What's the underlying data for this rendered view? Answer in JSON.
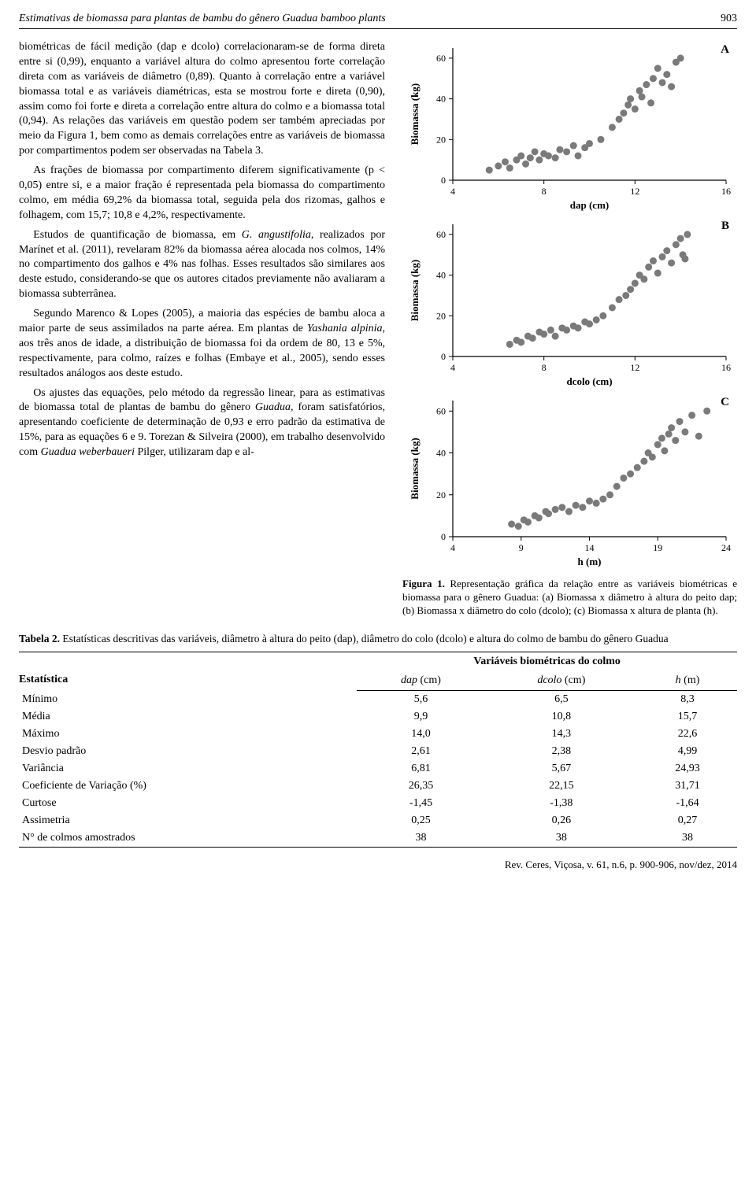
{
  "header": {
    "running_title": "Estimativas de biomassa para plantas de bambu do gênero Guadua bamboo plants",
    "page_number": "903"
  },
  "body": {
    "p1": "biométricas de fácil medição (dap e dcolo) correlacionaram-se de forma direta entre si (0,99), enquanto a variável altura do colmo apresentou forte correlação direta com as variáveis de diâmetro (0,89). Quanto à correlação entre a variável biomassa total e as variáveis diamétricas, esta se mostrou forte e direta (0,90), assim como foi forte e direta a correlação entre altura do colmo e a biomassa total (0,94). As relações das variáveis em questão podem ser também apreciadas por meio da Figura 1, bem como as demais correlações entre as variáveis de biomassa por compartimentos podem ser observadas na Tabela 3.",
    "p2": "As frações de biomassa por compartimento diferem significativamente (p < 0,05) entre si, e a maior fração é representada pela biomassa do compartimento colmo, em média 69,2% da biomassa total, seguida pela dos rizomas, galhos e folhagem, com 15,7; 10,8 e 4,2%, respectivamente.",
    "p3a": "Estudos de quantificação de biomassa, em ",
    "p3b": "G. angustifolia,",
    "p3c": " realizados por Marínet et al. (2011), revelaram 82% da biomassa aérea alocada nos colmos, 14% no compartimento dos galhos e 4% nas folhas. Esses resultados são similares aos deste estudo, considerando-se que os autores citados previamente não avaliaram a biomassa subterrânea.",
    "p4a": "Segundo Marenco & Lopes (2005), a maioria das espécies de bambu aloca a maior parte de seus assimilados na parte aérea. Em plantas de ",
    "p4b": "Yashania alpinia",
    "p4c": ", aos três anos de idade, a distribuição de biomassa foi da ordem de 80, 13 e 5%, respectivamente, para colmo, raízes e folhas (Embaye et al., 2005), sendo esses resultados análogos aos deste estudo.",
    "p5a": "Os ajustes das equações, pelo método da regressão linear, para as estimativas de biomassa total de plantas de bambu do gênero ",
    "p5b": "Guadua,",
    "p5c": " foram satisfatórios, apresentando coeficiente de determinação de 0,93 e erro padrão da estimativa de 15%, para as equações 6 e 9. Torezan & Silveira (2000), em trabalho desenvolvido com ",
    "p5d": "Guadua weberbaueri",
    "p5e": " Pilger, utilizaram dap e al-"
  },
  "charts": {
    "common": {
      "ylabel": "Biomassa (kg)",
      "marker_color": "#7a7a7a",
      "marker_radius": 4.5,
      "axis_color": "#000000",
      "label_fontsize": 13,
      "tick_fontsize": 12
    },
    "a": {
      "letter": "A",
      "xlabel": "dap (cm)",
      "xlim": [
        4,
        16
      ],
      "xticks": [
        4,
        8,
        12,
        16
      ],
      "ylim": [
        0,
        65
      ],
      "yticks": [
        0,
        20,
        40,
        60
      ],
      "points": [
        [
          5.6,
          5
        ],
        [
          6.0,
          7
        ],
        [
          6.3,
          9
        ],
        [
          6.5,
          6
        ],
        [
          6.8,
          10
        ],
        [
          7.0,
          12
        ],
        [
          7.2,
          8
        ],
        [
          7.4,
          11
        ],
        [
          7.6,
          14
        ],
        [
          7.8,
          10
        ],
        [
          8.0,
          13
        ],
        [
          8.2,
          12
        ],
        [
          8.5,
          11
        ],
        [
          8.7,
          15
        ],
        [
          9.0,
          14
        ],
        [
          9.3,
          17
        ],
        [
          9.5,
          12
        ],
        [
          9.8,
          16
        ],
        [
          10.0,
          18
        ],
        [
          10.5,
          20
        ],
        [
          11.0,
          26
        ],
        [
          11.3,
          30
        ],
        [
          11.5,
          33
        ],
        [
          11.7,
          37
        ],
        [
          11.8,
          40
        ],
        [
          12.0,
          35
        ],
        [
          12.2,
          44
        ],
        [
          12.3,
          41
        ],
        [
          12.5,
          47
        ],
        [
          12.7,
          38
        ],
        [
          12.8,
          50
        ],
        [
          13.0,
          55
        ],
        [
          13.2,
          48
        ],
        [
          13.4,
          52
        ],
        [
          13.6,
          46
        ],
        [
          13.8,
          58
        ],
        [
          14.0,
          60
        ]
      ]
    },
    "b": {
      "letter": "B",
      "xlabel": "dcolo (cm)",
      "xlim": [
        4,
        16
      ],
      "xticks": [
        4,
        8,
        12,
        16
      ],
      "ylim": [
        0,
        65
      ],
      "yticks": [
        0,
        20,
        40,
        60
      ],
      "points": [
        [
          6.5,
          6
        ],
        [
          6.8,
          8
        ],
        [
          7.0,
          7
        ],
        [
          7.3,
          10
        ],
        [
          7.5,
          9
        ],
        [
          7.8,
          12
        ],
        [
          8.0,
          11
        ],
        [
          8.3,
          13
        ],
        [
          8.5,
          10
        ],
        [
          8.8,
          14
        ],
        [
          9.0,
          13
        ],
        [
          9.3,
          15
        ],
        [
          9.5,
          14
        ],
        [
          9.8,
          17
        ],
        [
          10.0,
          16
        ],
        [
          10.3,
          18
        ],
        [
          10.6,
          20
        ],
        [
          11.0,
          24
        ],
        [
          11.3,
          28
        ],
        [
          11.6,
          30
        ],
        [
          11.8,
          33
        ],
        [
          12.0,
          36
        ],
        [
          12.2,
          40
        ],
        [
          12.4,
          38
        ],
        [
          12.6,
          44
        ],
        [
          12.8,
          47
        ],
        [
          13.0,
          41
        ],
        [
          13.2,
          49
        ],
        [
          13.4,
          52
        ],
        [
          13.6,
          46
        ],
        [
          13.8,
          55
        ],
        [
          14.0,
          58
        ],
        [
          14.1,
          50
        ],
        [
          14.2,
          48
        ],
        [
          14.3,
          60
        ]
      ]
    },
    "c": {
      "letter": "C",
      "xlabel": "h (m)",
      "xlim": [
        4,
        24
      ],
      "xticks": [
        4,
        9,
        14,
        19,
        24
      ],
      "ylim": [
        0,
        65
      ],
      "yticks": [
        0,
        20,
        40,
        60
      ],
      "points": [
        [
          8.3,
          6
        ],
        [
          8.8,
          5
        ],
        [
          9.2,
          8
        ],
        [
          9.5,
          7
        ],
        [
          10.0,
          10
        ],
        [
          10.3,
          9
        ],
        [
          10.8,
          12
        ],
        [
          11.0,
          11
        ],
        [
          11.5,
          13
        ],
        [
          12.0,
          14
        ],
        [
          12.5,
          12
        ],
        [
          13.0,
          15
        ],
        [
          13.5,
          14
        ],
        [
          14.0,
          17
        ],
        [
          14.5,
          16
        ],
        [
          15.0,
          18
        ],
        [
          15.5,
          20
        ],
        [
          16.0,
          24
        ],
        [
          16.5,
          28
        ],
        [
          17.0,
          30
        ],
        [
          17.5,
          33
        ],
        [
          18.0,
          36
        ],
        [
          18.3,
          40
        ],
        [
          18.6,
          38
        ],
        [
          19.0,
          44
        ],
        [
          19.3,
          47
        ],
        [
          19.5,
          41
        ],
        [
          19.8,
          49
        ],
        [
          20.0,
          52
        ],
        [
          20.3,
          46
        ],
        [
          20.6,
          55
        ],
        [
          21.0,
          50
        ],
        [
          21.5,
          58
        ],
        [
          22.0,
          48
        ],
        [
          22.6,
          60
        ]
      ]
    }
  },
  "figure_caption": {
    "prefix": "Figura 1.",
    "text": " Representação gráfica da relação entre as variáveis biométricas e biomassa para o gênero Guadua: (a) Biomassa x diâmetro à altura do peito dap; (b) Biomassa x diâmetro do colo (dcolo); (c) Biomassa x altura de planta (h)."
  },
  "table2": {
    "caption_prefix": "Tabela 2.",
    "caption_text": " Estatísticas descritivas das variáveis, diâmetro à altura do peito (dap), diâmetro do colo (dcolo) e altura do colmo de bambu do gênero Guadua",
    "group_header": "Variáveis biométricas do colmo",
    "row_header": "Estatística",
    "columns": [
      "dap (cm)",
      "dcolo (cm)",
      "h (m)"
    ],
    "rows": [
      {
        "label": "Mínimo",
        "vals": [
          "5,6",
          "6,5",
          "8,3"
        ]
      },
      {
        "label": "Média",
        "vals": [
          "9,9",
          "10,8",
          "15,7"
        ]
      },
      {
        "label": "Máximo",
        "vals": [
          "14,0",
          "14,3",
          "22,6"
        ]
      },
      {
        "label": "Desvio padrão",
        "vals": [
          "2,61",
          "2,38",
          "4,99"
        ]
      },
      {
        "label": "Variância",
        "vals": [
          "6,81",
          "5,67",
          "24,93"
        ]
      },
      {
        "label": "Coeficiente de Variação (%)",
        "vals": [
          "26,35",
          "22,15",
          "31,71"
        ]
      },
      {
        "label": "Curtose",
        "vals": [
          "-1,45",
          "-1,38",
          "-1,64"
        ]
      },
      {
        "label": "Assimetria",
        "vals": [
          "0,25",
          "0,26",
          "0,27"
        ]
      },
      {
        "label": "N° de colmos amostrados",
        "vals": [
          "38",
          "38",
          "38"
        ]
      }
    ]
  },
  "footer": "Rev. Ceres, Viçosa, v. 61, n.6, p. 900-906, nov/dez, 2014"
}
